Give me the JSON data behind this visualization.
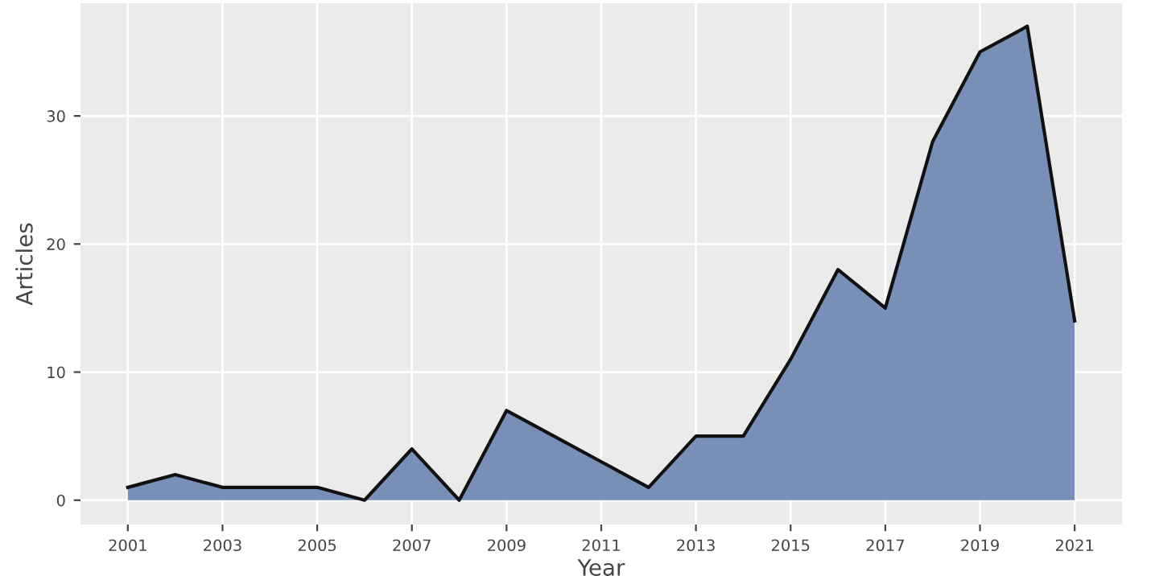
{
  "chart_data": {
    "type": "area",
    "xlabel": "Year",
    "ylabel": "Articles",
    "x": [
      2001,
      2002,
      2003,
      2004,
      2005,
      2006,
      2007,
      2008,
      2009,
      2010,
      2011,
      2012,
      2013,
      2014,
      2015,
      2016,
      2017,
      2018,
      2019,
      2020,
      2021
    ],
    "series": [
      {
        "color": "#7890b8",
        "values": [
          1,
          2,
          1,
          1,
          1,
          0,
          4,
          0,
          7,
          5,
          3,
          1,
          5,
          5,
          11,
          18,
          15,
          28,
          35,
          37,
          14
        ]
      }
    ],
    "xlim": [
      2000,
      2022
    ],
    "xticks": [
      2001,
      2003,
      2005,
      2007,
      2009,
      2011,
      2013,
      2015,
      2017,
      2019,
      2021
    ],
    "ylim": [
      -1.9,
      38.8
    ],
    "yticks": [
      0,
      10,
      20,
      30
    ],
    "grid": true,
    "legend": false
  }
}
